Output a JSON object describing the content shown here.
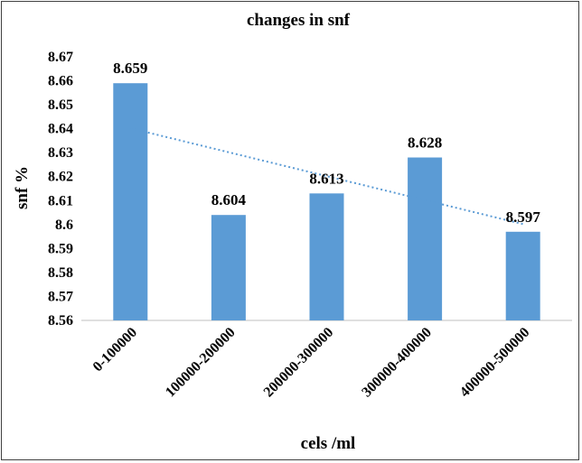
{
  "chart_data": {
    "type": "bar",
    "title": "changes in snf",
    "xlabel": "cels /ml",
    "ylabel": "snf %",
    "categories": [
      "0-100000",
      "100000-200000",
      "200000-300000",
      "300000-400000",
      "400000-500000"
    ],
    "values": [
      8.659,
      8.604,
      8.613,
      8.628,
      8.597
    ],
    "data_labels": [
      "8.659",
      "8.604",
      "8.613",
      "8.628",
      "8.597"
    ],
    "ylim": [
      8.56,
      8.67
    ],
    "yticks": [
      "8.56",
      "8.57",
      "8.58",
      "8.59",
      "8.6",
      "8.61",
      "8.62",
      "8.63",
      "8.64",
      "8.65",
      "8.66",
      "8.67"
    ],
    "grid": false,
    "legend": "none",
    "trendline": {
      "type": "linear",
      "style": "dotted"
    },
    "colors": {
      "bar": "#5b9bd5",
      "trendline": "#5b9bd5",
      "axis": "#bfbfbf"
    }
  }
}
